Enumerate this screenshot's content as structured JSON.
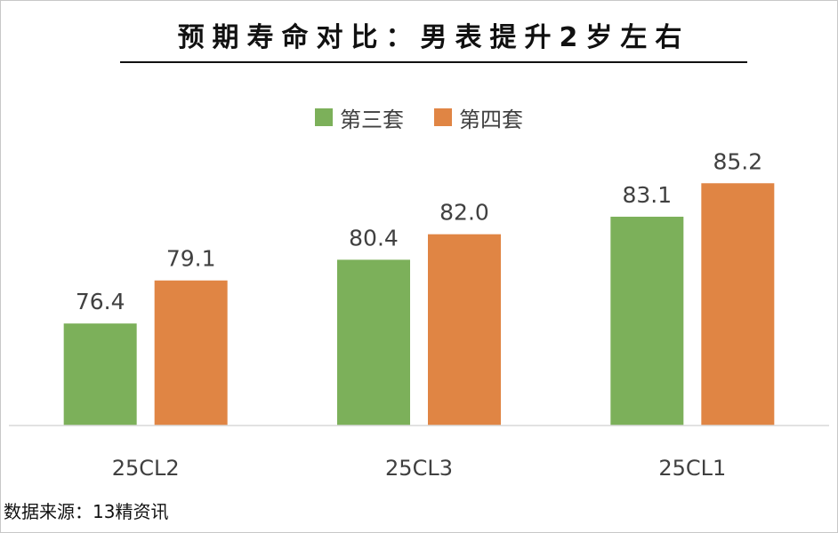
{
  "chart_data": {
    "type": "bar",
    "title": "预期寿命对比：男表提升2岁左右",
    "categories": [
      "25CL2",
      "25CL3",
      "25CL1"
    ],
    "series": [
      {
        "name": "第三套",
        "color": "#7cb05a",
        "values": [
          76.4,
          80.4,
          83.1
        ],
        "labels": [
          "76.4",
          "80.4",
          "83.1"
        ]
      },
      {
        "name": "第四套",
        "color": "#e08544",
        "values": [
          79.1,
          82.0,
          85.2
        ],
        "labels": [
          "79.1",
          "82.0",
          "85.2"
        ]
      }
    ],
    "xlabel": "",
    "ylabel": "",
    "ylim": [
      70,
      87.5
    ],
    "grid": false,
    "legend": "top-center"
  },
  "source_note": "数据来源：13精资讯"
}
